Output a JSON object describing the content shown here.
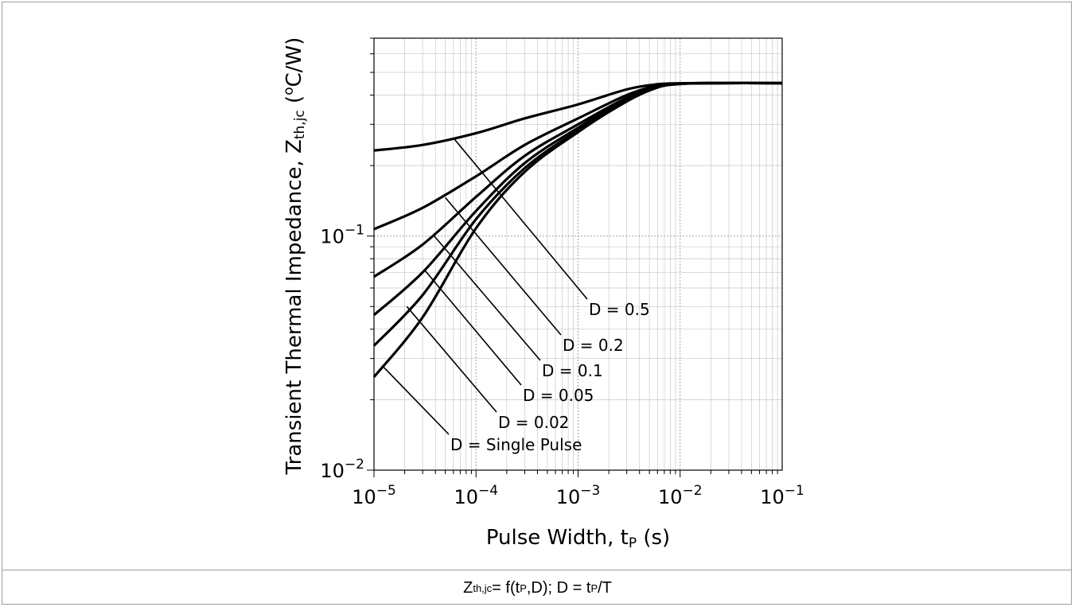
{
  "chart_data": {
    "type": "line",
    "x_scale": "log",
    "y_scale": "log",
    "xlim": [
      1e-05,
      0.1
    ],
    "ylim": [
      0.01,
      0.7
    ],
    "grid": true,
    "xlabel": "Pulse Width, t",
    "xlabel_sub": "P",
    "xlabel_unit": " (s)",
    "ylabel": "Transient Thermal Impedance, Z",
    "ylabel_sub": "th,jc",
    "ylabel_unit_pre": " (",
    "ylabel_unit_sup": "o",
    "ylabel_unit_post": "C/W)",
    "x_ticks": [
      {
        "value": 1e-05,
        "base": "10",
        "exp": "−5"
      },
      {
        "value": 0.0001,
        "base": "10",
        "exp": "−4"
      },
      {
        "value": 0.001,
        "base": "10",
        "exp": "−3"
      },
      {
        "value": 0.01,
        "base": "10",
        "exp": "−2"
      },
      {
        "value": 0.1,
        "base": "10",
        "exp": "−1"
      }
    ],
    "y_ticks": [
      {
        "value": 0.01,
        "base": "10",
        "exp": "−2"
      },
      {
        "value": 0.1,
        "base": "10",
        "exp": "−1"
      }
    ],
    "series": [
      {
        "name": "D = 0.5",
        "x": [
          1e-05,
          3e-05,
          0.0001,
          0.0003,
          0.001,
          0.003,
          0.006,
          0.01,
          0.02,
          0.1
        ],
        "y": [
          0.232,
          0.245,
          0.275,
          0.318,
          0.365,
          0.423,
          0.445,
          0.449,
          0.45,
          0.45
        ],
        "label_anchor": [
          6.2e-05,
          0.258
        ]
      },
      {
        "name": "D = 0.2",
        "x": [
          1e-05,
          3e-05,
          0.0001,
          0.0003,
          0.001,
          0.003,
          0.006,
          0.01,
          0.02,
          0.1
        ],
        "y": [
          0.107,
          0.132,
          0.18,
          0.245,
          0.318,
          0.4,
          0.44,
          0.449,
          0.45,
          0.45
        ],
        "label_anchor": [
          5e-05,
          0.146
        ]
      },
      {
        "name": "D = 0.1",
        "x": [
          1e-05,
          3e-05,
          0.0001,
          0.0003,
          0.001,
          0.003,
          0.006,
          0.01,
          0.02,
          0.1
        ],
        "y": [
          0.067,
          0.092,
          0.147,
          0.22,
          0.3,
          0.39,
          0.437,
          0.448,
          0.45,
          0.45
        ],
        "label_anchor": [
          3.9e-05,
          0.1
        ]
      },
      {
        "name": "D = 0.05",
        "x": [
          1e-05,
          3e-05,
          0.0001,
          0.0003,
          0.001,
          0.003,
          0.006,
          0.01,
          0.02,
          0.1
        ],
        "y": [
          0.046,
          0.07,
          0.128,
          0.205,
          0.29,
          0.385,
          0.435,
          0.447,
          0.45,
          0.45
        ],
        "label_anchor": [
          3.1e-05,
          0.072
        ]
      },
      {
        "name": "D = 0.02",
        "x": [
          1e-05,
          3e-05,
          0.0001,
          0.0003,
          0.001,
          0.003,
          0.006,
          0.01,
          0.02,
          0.1
        ],
        "y": [
          0.034,
          0.056,
          0.118,
          0.195,
          0.283,
          0.38,
          0.433,
          0.447,
          0.45,
          0.45
        ],
        "label_anchor": [
          2.1e-05,
          0.05
        ]
      },
      {
        "name": "D = Single Pulse",
        "x": [
          1e-05,
          3e-05,
          0.0001,
          0.0003,
          0.001,
          0.003,
          0.006,
          0.01,
          0.02,
          0.1
        ],
        "y": [
          0.025,
          0.045,
          0.108,
          0.188,
          0.278,
          0.376,
          0.431,
          0.446,
          0.45,
          0.45
        ],
        "label_anchor": [
          1.2e-05,
          0.028
        ]
      }
    ],
    "annotations": [
      {
        "text": "D = 0.5",
        "series": "D = 0.5"
      },
      {
        "text": "D = 0.2",
        "series": "D = 0.2"
      },
      {
        "text": "D = 0.1",
        "series": "D = 0.1"
      },
      {
        "text": "D = 0.05",
        "series": "D = 0.05"
      },
      {
        "text": "D = 0.02",
        "series": "D = 0.02"
      },
      {
        "text": "D = Single Pulse",
        "series": "D = Single Pulse"
      }
    ]
  },
  "caption": {
    "z": "Z",
    "z_sub": "th,jc",
    "mid": " = f(t",
    "t_sub": "P",
    "mid2": ",D); D = t",
    "t2_sub": "P",
    "end": "/T"
  }
}
